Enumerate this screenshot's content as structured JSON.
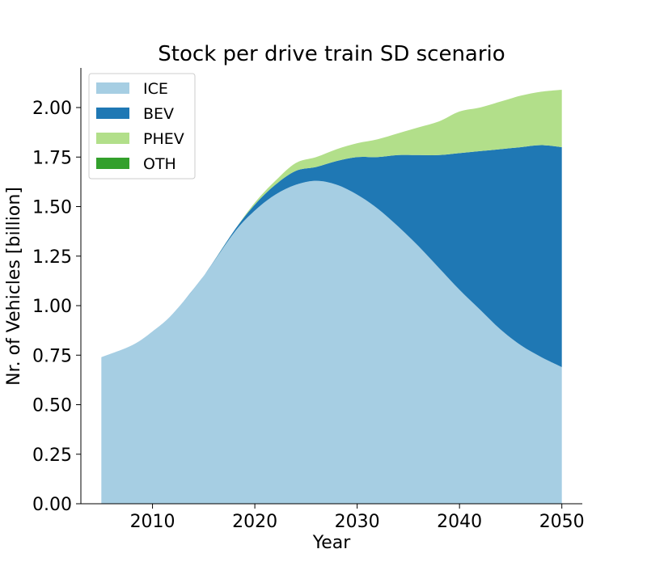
{
  "chart_data": {
    "type": "area",
    "stacked": true,
    "title": "Stock per drive train SD scenario",
    "xlabel": "Year",
    "ylabel": "Nr. of Vehicles [billion]",
    "xlim": [
      2003,
      2052
    ],
    "ylim": [
      0,
      2.2
    ],
    "xticks": [
      2010,
      2020,
      2030,
      2040,
      2050
    ],
    "yticks": [
      0.0,
      0.25,
      0.5,
      0.75,
      1.0,
      1.25,
      1.5,
      1.75,
      2.0
    ],
    "xtick_labels": [
      "2010",
      "2020",
      "2030",
      "2040",
      "2050"
    ],
    "ytick_labels": [
      "0.00",
      "0.25",
      "0.50",
      "0.75",
      "1.00",
      "1.25",
      "1.50",
      "1.75",
      "2.00"
    ],
    "grid": false,
    "legend_position": "top-left",
    "x": [
      2005,
      2008,
      2010,
      2012,
      2015,
      2018,
      2020,
      2022,
      2024,
      2026,
      2028,
      2030,
      2032,
      2034,
      2036,
      2038,
      2040,
      2042,
      2044,
      2046,
      2048,
      2050
    ],
    "series": [
      {
        "name": "ICE",
        "color": "#a6cee3",
        "values": [
          0.74,
          0.8,
          0.87,
          0.96,
          1.15,
          1.37,
          1.48,
          1.56,
          1.61,
          1.63,
          1.61,
          1.56,
          1.49,
          1.4,
          1.3,
          1.19,
          1.08,
          0.98,
          0.88,
          0.8,
          0.74,
          0.69
        ]
      },
      {
        "name": "BEV",
        "color": "#1f78b4",
        "values": [
          0.0,
          0.0,
          0.0,
          0.0,
          0.0,
          0.01,
          0.03,
          0.05,
          0.07,
          0.07,
          0.12,
          0.19,
          0.26,
          0.36,
          0.46,
          0.57,
          0.69,
          0.8,
          0.91,
          1.0,
          1.07,
          1.11
        ]
      },
      {
        "name": "PHEV",
        "color": "#b2df8a",
        "values": [
          0.0,
          0.0,
          0.0,
          0.0,
          0.0,
          0.0,
          0.01,
          0.02,
          0.04,
          0.05,
          0.06,
          0.07,
          0.09,
          0.11,
          0.14,
          0.17,
          0.21,
          0.22,
          0.24,
          0.26,
          0.27,
          0.29
        ]
      },
      {
        "name": "OTH",
        "color": "#33a02c",
        "values": [
          0.0,
          0.0,
          0.0,
          0.0,
          0.0,
          0.0,
          0.0,
          0.0,
          0.0,
          0.0,
          0.0,
          0.0,
          0.0,
          0.0,
          0.0,
          0.0,
          0.0,
          0.0,
          0.0,
          0.0,
          0.0,
          0.0
        ]
      }
    ]
  }
}
